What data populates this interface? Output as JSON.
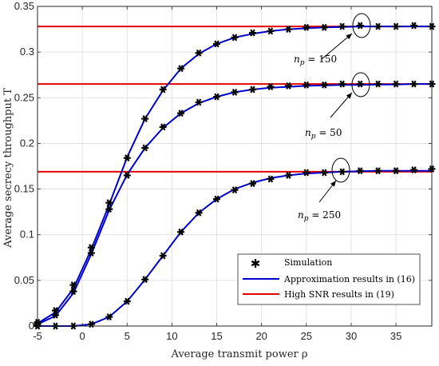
{
  "chart_data": {
    "type": "line",
    "xlabel": "Average transmit power ρ",
    "ylabel": "Average secrecy throughput T",
    "xlim": [
      -5,
      39
    ],
    "ylim": [
      0,
      0.35
    ],
    "x_ticks": [
      -5,
      0,
      5,
      10,
      15,
      20,
      25,
      30,
      35
    ],
    "x_tick_labels": [
      "-5",
      "0",
      "5",
      "10",
      "15",
      "20",
      "25",
      "30",
      "35"
    ],
    "y_ticks": [
      0,
      0.05,
      0.1,
      0.15,
      0.2,
      0.25,
      0.3,
      0.35
    ],
    "y_tick_labels": [
      "0",
      "0.05",
      "0.1",
      "0.15",
      "0.2",
      "0.25",
      "0.3",
      "0.35"
    ],
    "grid": true,
    "legend_position": "bottom-right",
    "legend": [
      {
        "label": "Simulation",
        "style": "marker",
        "color": "#000000"
      },
      {
        "label": "Approximation results in (16)",
        "style": "line",
        "color": "#0000cc"
      },
      {
        "label": "High SNR results in (19)",
        "style": "line",
        "color": "#e00000"
      }
    ],
    "x": [
      -5,
      -3,
      -1,
      1,
      3,
      5,
      7,
      9,
      11,
      13,
      15,
      17,
      19,
      21,
      23,
      25,
      27,
      29,
      31,
      33,
      35,
      37,
      39
    ],
    "series": [
      {
        "name": "n_p = 150",
        "approx": [
          0.003,
          0.015,
          0.041,
          0.084,
          0.133,
          0.185,
          0.227,
          0.258,
          0.282,
          0.298,
          0.309,
          0.316,
          0.32,
          0.323,
          0.325,
          0.326,
          0.327,
          0.3275,
          0.328,
          0.328,
          0.328,
          0.328,
          0.328
        ],
        "simulation": [
          0.004,
          0.017,
          0.045,
          0.086,
          0.135,
          0.184,
          0.227,
          0.259,
          0.282,
          0.299,
          0.309,
          0.316,
          0.321,
          0.323,
          0.325,
          0.327,
          0.327,
          0.328,
          0.329,
          0.328,
          0.328,
          0.329,
          0.328
        ],
        "high_snr": 0.328
      },
      {
        "name": "n_p = 50",
        "approx": [
          0.002,
          0.011,
          0.036,
          0.079,
          0.127,
          0.166,
          0.195,
          0.217,
          0.233,
          0.244,
          0.251,
          0.256,
          0.259,
          0.261,
          0.262,
          0.263,
          0.2635,
          0.264,
          0.264,
          0.2645,
          0.2645,
          0.265,
          0.265
        ],
        "simulation": [
          0.002,
          0.012,
          0.038,
          0.08,
          0.128,
          0.165,
          0.195,
          0.218,
          0.233,
          0.245,
          0.251,
          0.256,
          0.259,
          0.262,
          0.263,
          0.264,
          0.264,
          0.265,
          0.265,
          0.265,
          0.265,
          0.265,
          0.265
        ],
        "high_snr": 0.265
      },
      {
        "name": "n_p = 250",
        "approx": [
          0.0,
          0.0,
          0.0,
          0.002,
          0.01,
          0.027,
          0.051,
          0.077,
          0.103,
          0.124,
          0.139,
          0.15,
          0.157,
          0.162,
          0.165,
          0.167,
          0.168,
          0.169,
          0.1695,
          0.17,
          0.17,
          0.17,
          0.17
        ],
        "simulation": [
          0.0,
          0.0,
          0.0,
          0.002,
          0.01,
          0.027,
          0.051,
          0.077,
          0.103,
          0.124,
          0.139,
          0.149,
          0.156,
          0.161,
          0.165,
          0.168,
          0.168,
          0.169,
          0.17,
          0.17,
          0.17,
          0.171,
          0.172
        ],
        "high_snr": 0.169
      }
    ],
    "annotations": [
      {
        "text": "n_p = 150",
        "points_to": [
          31,
          0.328
        ]
      },
      {
        "text": "n_p = 50",
        "points_to": [
          31,
          0.265
        ]
      },
      {
        "text": "n_p = 250",
        "points_to": [
          29,
          0.169
        ]
      }
    ],
    "colors": {
      "approx": "#0000cc",
      "high_snr": "#e00000",
      "marker": "#000000",
      "grid": "#dcdcdc"
    }
  }
}
